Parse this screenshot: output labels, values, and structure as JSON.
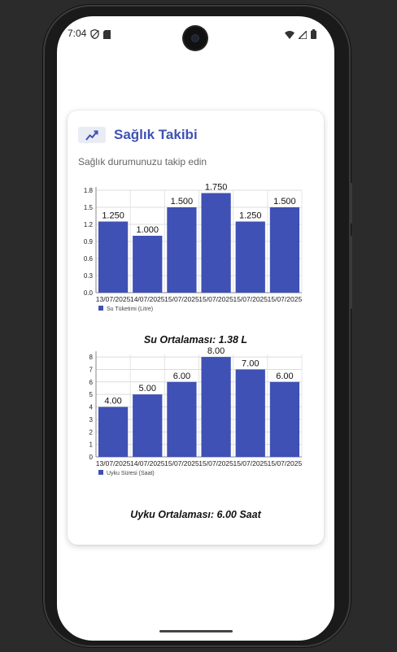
{
  "status_bar": {
    "time": "7:04",
    "icons_left": [
      "shield-icon",
      "sd-card-icon"
    ],
    "icons_right": [
      "wifi-icon",
      "signal-icon",
      "battery-icon"
    ]
  },
  "card": {
    "title": "Sağlık Takibi",
    "title_icon": "trending-up-icon",
    "subtitle": "Sağlık durumunuzu takip edin",
    "water_average": "Su Ortalaması: 1.38 L",
    "sleep_average": "Uyku Ortalaması: 6.00 Saat"
  },
  "colors": {
    "bar": "#3f51b5",
    "accent": "#3f51b5"
  },
  "chart_data": [
    {
      "type": "bar",
      "categories": [
        "13/07/2025",
        "14/07/2025",
        "15/07/2025",
        "15/07/2025",
        "15/07/2025",
        "15/07/2025"
      ],
      "values": [
        1.25,
        1.0,
        1.5,
        1.75,
        1.25,
        1.5
      ],
      "value_labels": [
        "1.250",
        "1.000",
        "1.500",
        "1.750",
        "1.250",
        "1.500"
      ],
      "series_name": "Su Tüketimi (Litre)",
      "yticks": [
        "0.0",
        "0.3",
        "0.6",
        "0.9",
        "1.2",
        "1.5",
        "1.8"
      ],
      "ylim": [
        0,
        1.8
      ],
      "grid": true,
      "legend": "bottom-left"
    },
    {
      "type": "bar",
      "categories": [
        "13/07/2025",
        "14/07/2025",
        "15/07/2025",
        "15/07/2025",
        "15/07/2025",
        "15/07/2025"
      ],
      "values": [
        4.0,
        5.0,
        6.0,
        8.0,
        7.0,
        6.0
      ],
      "value_labels": [
        "4.00",
        "5.00",
        "6.00",
        "8.00",
        "7.00",
        "6.00"
      ],
      "series_name": "Uyku Süresi (Saat)",
      "yticks": [
        "0",
        "1",
        "2",
        "3",
        "4",
        "5",
        "6",
        "7",
        "8"
      ],
      "ylim": [
        0,
        8.2
      ],
      "grid": true,
      "legend": "bottom-left"
    }
  ]
}
